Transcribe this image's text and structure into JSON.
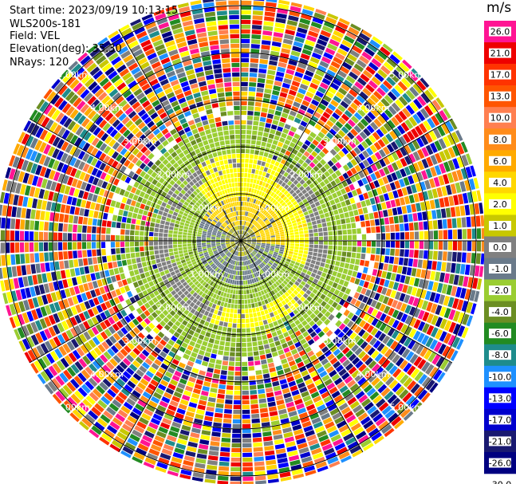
{
  "header": {
    "start_time": "Start time: 2023/09/19 10:13:15",
    "instrument": "WLS200s-181",
    "field": "Field: VEL",
    "elevation": "Elevation(deg): 35.30",
    "nrays": "NRays: 120"
  },
  "colorbar": {
    "unit": "m/s",
    "ticks": [
      "26.0",
      "21.0",
      "17.0",
      "13.0",
      "10.0",
      "8.0",
      "6.0",
      "4.0",
      "2.0",
      "1.0",
      "0.0",
      "-1.0",
      "-2.0",
      "-4.0",
      "-6.0",
      "-8.0",
      "-10.0",
      "-13.0",
      "-17.0",
      "-21.0",
      "-26.0",
      "-30.0"
    ],
    "colors": [
      "#ff1493",
      "#ee0000",
      "#ff3300",
      "#ff5500",
      "#ff7f50",
      "#ff8c1a",
      "#ffaa00",
      "#ffd700",
      "#ffff00",
      "#c8c800",
      "#808080",
      "#6a7a8a",
      "#9acd32",
      "#6b8e23",
      "#228b22",
      "#1e8c8c",
      "#1e90ff",
      "#0000ff",
      "#0000cd",
      "#191970",
      "#000080"
    ]
  },
  "chart_data": {
    "type": "heatmap",
    "projection": "polar (PPI scan)",
    "field": "VEL",
    "units": "m/s",
    "n_rays": 120,
    "elevation_deg": 35.3,
    "range_ring_labels": [
      "1.00km",
      "2.00km",
      "3.00km",
      "4.00km",
      "5.00km"
    ],
    "value_range": [
      -30.0,
      26.0
    ],
    "description_of_pattern": [
      {
        "range_km": [
          0.0,
          1.0
        ],
        "dominant_values": [
          -1.0,
          2.0
        ]
      },
      {
        "range_km": [
          1.0,
          2.0
        ],
        "dominant_values": [
          -2.0,
          2.0
        ]
      },
      {
        "range_km": [
          2.0,
          3.0
        ],
        "dominant_values": [
          -2.0,
          1.0
        ]
      },
      {
        "range_km": [
          3.0,
          5.2
        ],
        "dominant_values": "noise (all bins)"
      }
    ]
  }
}
